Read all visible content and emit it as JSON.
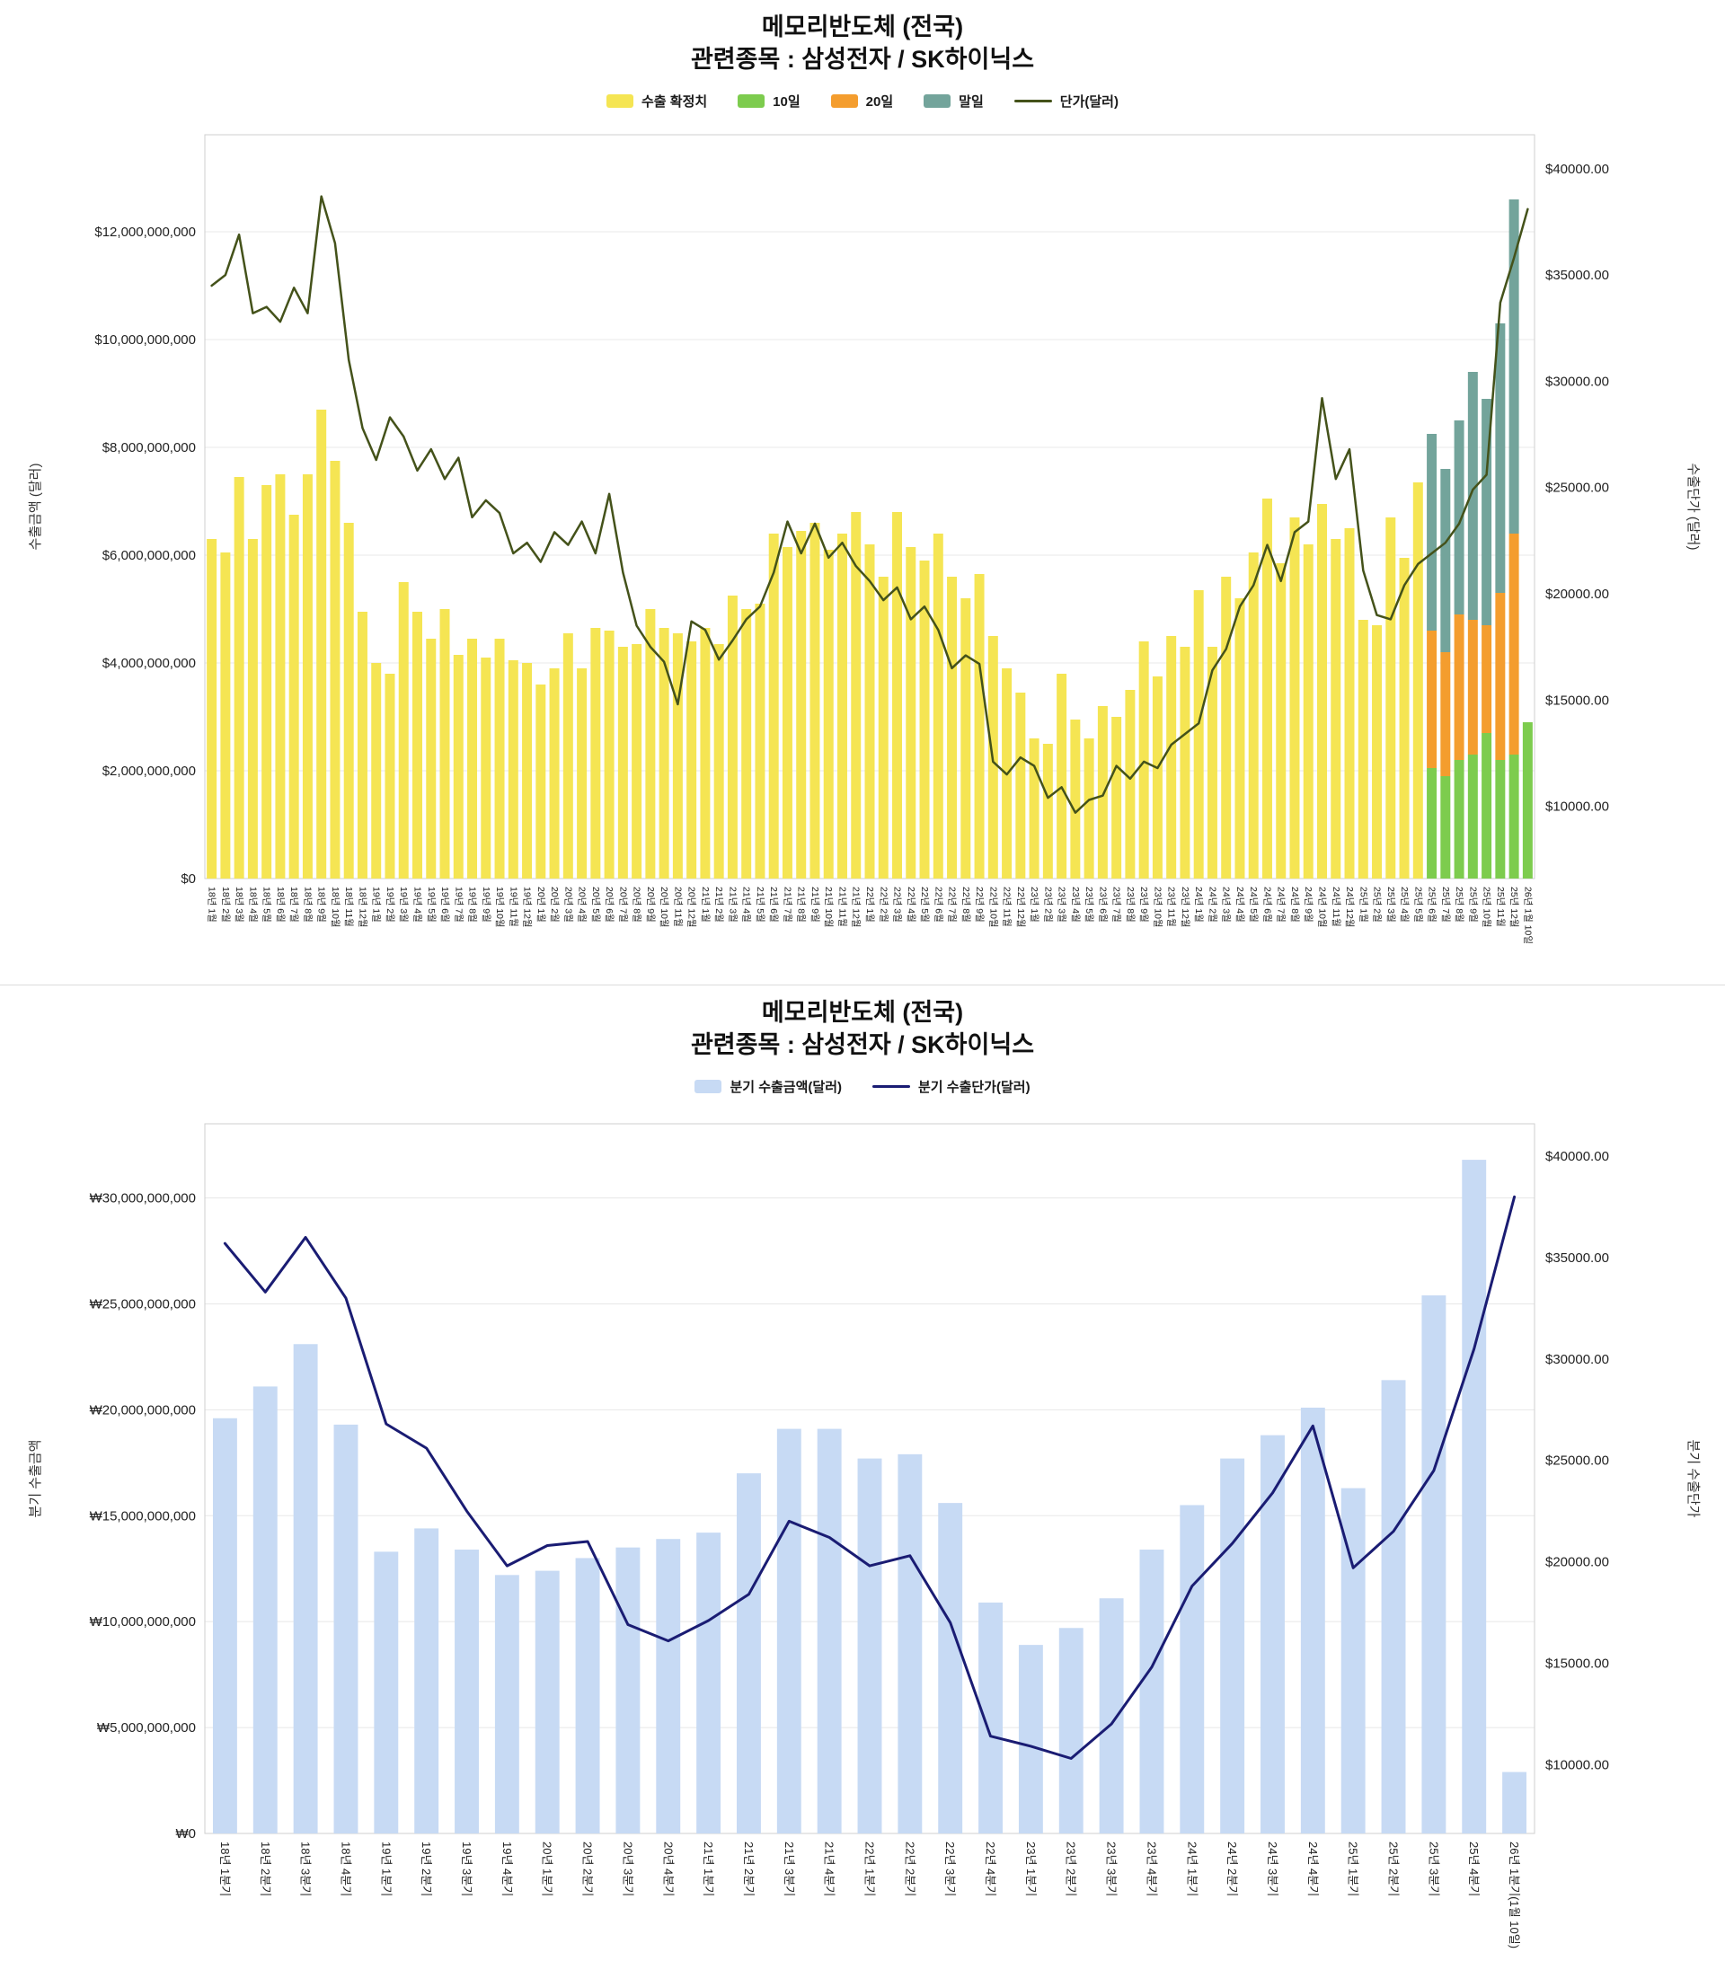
{
  "chart_data": [
    {
      "type": "bar+line",
      "title": "메모리반도체 (전국)",
      "subtitle": "관련종목 : 삼성전자 / SK하이닉스",
      "legend": [
        {
          "label": "수출 확정치",
          "type": "rect",
          "color": "#F5E553"
        },
        {
          "label": "10일",
          "type": "rect",
          "color": "#7DCC4E"
        },
        {
          "label": "20일",
          "type": "rect",
          "color": "#F49D2E"
        },
        {
          "label": "말일",
          "type": "rect",
          "color": "#73A49B"
        },
        {
          "label": "단가(달러)",
          "type": "line",
          "color": "#44521A"
        }
      ],
      "left_axis": {
        "title": "수출금액 (달러)",
        "min": 0,
        "max": 13.8,
        "scale": 1000000000,
        "ticks": [
          0,
          2,
          4,
          6,
          8,
          10,
          12
        ],
        "format": "usd_commas"
      },
      "right_axis": {
        "title": "수출단가 (달러)",
        "min": 6600,
        "max": 41600,
        "scale": 1,
        "ticks": [
          10000,
          15000,
          20000,
          25000,
          30000,
          35000,
          40000
        ],
        "format": "usd_2dp"
      },
      "categories": [
        "18년 1월",
        "18년 2월",
        "18년 3월",
        "18년 4월",
        "18년 5월",
        "18년 6월",
        "18년 7월",
        "18년 8월",
        "18년 9월",
        "18년 10월",
        "18년 11월",
        "18년 12월",
        "19년 1월",
        "19년 2월",
        "19년 3월",
        "19년 4월",
        "19년 5월",
        "19년 6월",
        "19년 7월",
        "19년 8월",
        "19년 9월",
        "19년 10월",
        "19년 11월",
        "19년 12월",
        "20년 1월",
        "20년 2월",
        "20년 3월",
        "20년 4월",
        "20년 5월",
        "20년 6월",
        "20년 7월",
        "20년 8월",
        "20년 9월",
        "20년 10월",
        "20년 11월",
        "20년 12월",
        "21년 1월",
        "21년 2월",
        "21년 3월",
        "21년 4월",
        "21년 5월",
        "21년 6월",
        "21년 7월",
        "21년 8월",
        "21년 9월",
        "21년 10월",
        "21년 11월",
        "21년 12월",
        "22년 1월",
        "22년 2월",
        "22년 3월",
        "22년 4월",
        "22년 5월",
        "22년 6월",
        "22년 7월",
        "22년 8월",
        "22년 9월",
        "22년 10월",
        "22년 11월",
        "22년 12월",
        "23년 1월",
        "23년 2월",
        "23년 3월",
        "23년 4월",
        "23년 5월",
        "23년 6월",
        "23년 7월",
        "23년 8월",
        "23년 9월",
        "23년 10월",
        "23년 11월",
        "23년 12월",
        "24년 1월",
        "24년 2월",
        "24년 3월",
        "24년 4월",
        "24년 5월",
        "24년 6월",
        "24년 7월",
        "24년 8월",
        "24년 9월",
        "24년 10월",
        "24년 11월",
        "24년 12월",
        "25년 1월",
        "25년 2월",
        "25년 3월",
        "25년 4월",
        "25년 5월",
        "25년 6월",
        "25년 7월",
        "25년 8월",
        "25년 9월",
        "25년 10월",
        "25년 11월",
        "25년 12월",
        "26년 1월 10일"
      ],
      "bars": {
        "confirmed": {
          "name": "수출 확정치",
          "color": "#F5E553",
          "values": [
            6.3,
            6.05,
            7.45,
            6.3,
            7.3,
            7.5,
            6.75,
            7.5,
            8.7,
            7.75,
            6.6,
            4.95,
            4.0,
            3.8,
            5.5,
            4.95,
            4.45,
            5.0,
            4.15,
            4.45,
            4.1,
            4.45,
            4.05,
            4.0,
            3.6,
            3.9,
            4.55,
            3.9,
            4.65,
            4.6,
            4.3,
            4.35,
            5.0,
            4.65,
            4.55,
            4.4,
            4.65,
            4.35,
            5.25,
            5.0,
            5.1,
            6.4,
            6.15,
            6.45,
            6.6,
            6.1,
            6.4,
            6.8,
            6.2,
            5.6,
            6.8,
            6.15,
            5.9,
            6.4,
            5.6,
            5.2,
            5.65,
            4.5,
            3.9,
            3.45,
            2.6,
            2.5,
            3.8,
            2.95,
            2.6,
            3.2,
            3.0,
            3.5,
            4.4,
            3.75,
            4.5,
            4.3,
            5.35,
            4.3,
            5.6,
            5.2,
            6.05,
            7.05,
            5.85,
            6.7,
            6.2,
            6.95,
            6.3,
            6.5,
            4.8,
            4.7,
            6.7,
            5.95,
            7.35
          ]
        },
        "partial": {
          "start_index": 89,
          "series": [
            {
              "name": "10일",
              "color": "#7DCC4E",
              "values": [
                2.05,
                1.9,
                2.2,
                2.3,
                2.7,
                2.2,
                2.3,
                2.9
              ]
            },
            {
              "name": "20일",
              "color": "#F49D2E",
              "values": [
                2.55,
                2.3,
                2.7,
                2.5,
                2.0,
                3.1,
                4.1,
                0
              ]
            },
            {
              "name": "말일",
              "color": "#73A49B",
              "values": [
                3.65,
                3.4,
                3.6,
                4.6,
                4.2,
                5.0,
                6.2,
                0
              ]
            }
          ]
        }
      },
      "line": {
        "name": "단가(달러)",
        "color": "#44521A",
        "values": [
          34500,
          35000,
          36900,
          33200,
          33500,
          32800,
          34400,
          33200,
          38700,
          36500,
          31000,
          27800,
          26300,
          28300,
          27400,
          25800,
          26800,
          25400,
          26400,
          23600,
          24400,
          23800,
          21900,
          22400,
          21500,
          22900,
          22300,
          23400,
          21900,
          24700,
          21000,
          18500,
          17500,
          16800,
          14800,
          18700,
          18300,
          16900,
          17800,
          18800,
          19400,
          21000,
          23400,
          21900,
          23300,
          21700,
          22400,
          21300,
          20600,
          19700,
          20300,
          18800,
          19400,
          18300,
          16500,
          17100,
          16700,
          12100,
          11500,
          12300,
          11900,
          10400,
          10900,
          9700,
          10300,
          10500,
          11900,
          11300,
          12100,
          11800,
          12900,
          13400,
          13900,
          16400,
          17400,
          19400,
          20400,
          22300,
          20600,
          22900,
          23400,
          29200,
          25400,
          26800,
          21100,
          19000,
          18800,
          20400,
          21400,
          21900,
          22400,
          23300,
          24900,
          25600,
          33700,
          35800,
          38100
        ]
      }
    },
    {
      "type": "bar+line",
      "title": "메모리반도체 (전국)",
      "subtitle": "관련종목 : 삼성전자 / SK하이닉스",
      "legend": [
        {
          "label": "분기 수출금액(달러)",
          "type": "rect",
          "color": "#C7DAF4"
        },
        {
          "label": "분기 수출단가(달러)",
          "type": "line",
          "color": "#1A1C73"
        }
      ],
      "left_axis": {
        "title": "분기 수출금액",
        "min": 0,
        "max": 33.5,
        "scale": 1000000000,
        "ticks": [
          0,
          5,
          10,
          15,
          20,
          25,
          30
        ],
        "format": "krw_commas"
      },
      "right_axis": {
        "title": "분기 수출단가",
        "min": 6600,
        "max": 41600,
        "scale": 1,
        "ticks": [
          10000,
          15000,
          20000,
          25000,
          30000,
          35000,
          40000
        ],
        "format": "usd_2dp"
      },
      "categories": [
        "18년 1분기",
        "18년 2분기",
        "18년 3분기",
        "18년 4분기",
        "19년 1분기",
        "19년 2분기",
        "19년 3분기",
        "19년 4분기",
        "20년 1분기",
        "20년 2분기",
        "20년 3분기",
        "20년 4분기",
        "21년 1분기",
        "21년 2분기",
        "21년 3분기",
        "21년 4분기",
        "22년 1분기",
        "22년 2분기",
        "22년 3분기",
        "22년 4분기",
        "23년 1분기",
        "23년 2분기",
        "23년 3분기",
        "23년 4분기",
        "24년 1분기",
        "24년 2분기",
        "24년 3분기",
        "24년 4분기",
        "25년 1분기",
        "25년 2분기",
        "25년 3분기",
        "25년 4분기",
        "26년 1분기(1월 10일)"
      ],
      "bars": {
        "confirmed": {
          "name": "분기 수출금액(달러)",
          "color": "#C7DAF4",
          "values": [
            19.6,
            21.1,
            23.1,
            19.3,
            13.3,
            14.4,
            13.4,
            12.2,
            12.4,
            13.0,
            13.5,
            13.9,
            14.2,
            17.0,
            19.1,
            19.1,
            17.7,
            17.9,
            15.6,
            10.9,
            8.9,
            9.7,
            11.1,
            13.4,
            15.5,
            17.7,
            18.8,
            20.1,
            16.3,
            21.4,
            25.4,
            31.8,
            2.9
          ]
        }
      },
      "line": {
        "name": "분기 수출단가(달러)",
        "color": "#1A1C73",
        "values": [
          35700,
          33300,
          36000,
          33000,
          26800,
          25600,
          22500,
          19800,
          20800,
          21000,
          16900,
          16100,
          17100,
          18400,
          22000,
          21200,
          19800,
          20300,
          17000,
          11400,
          10900,
          10300,
          12000,
          14800,
          18800,
          20900,
          23400,
          26700,
          19700,
          21500,
          24500,
          30500,
          38000
        ]
      }
    }
  ]
}
